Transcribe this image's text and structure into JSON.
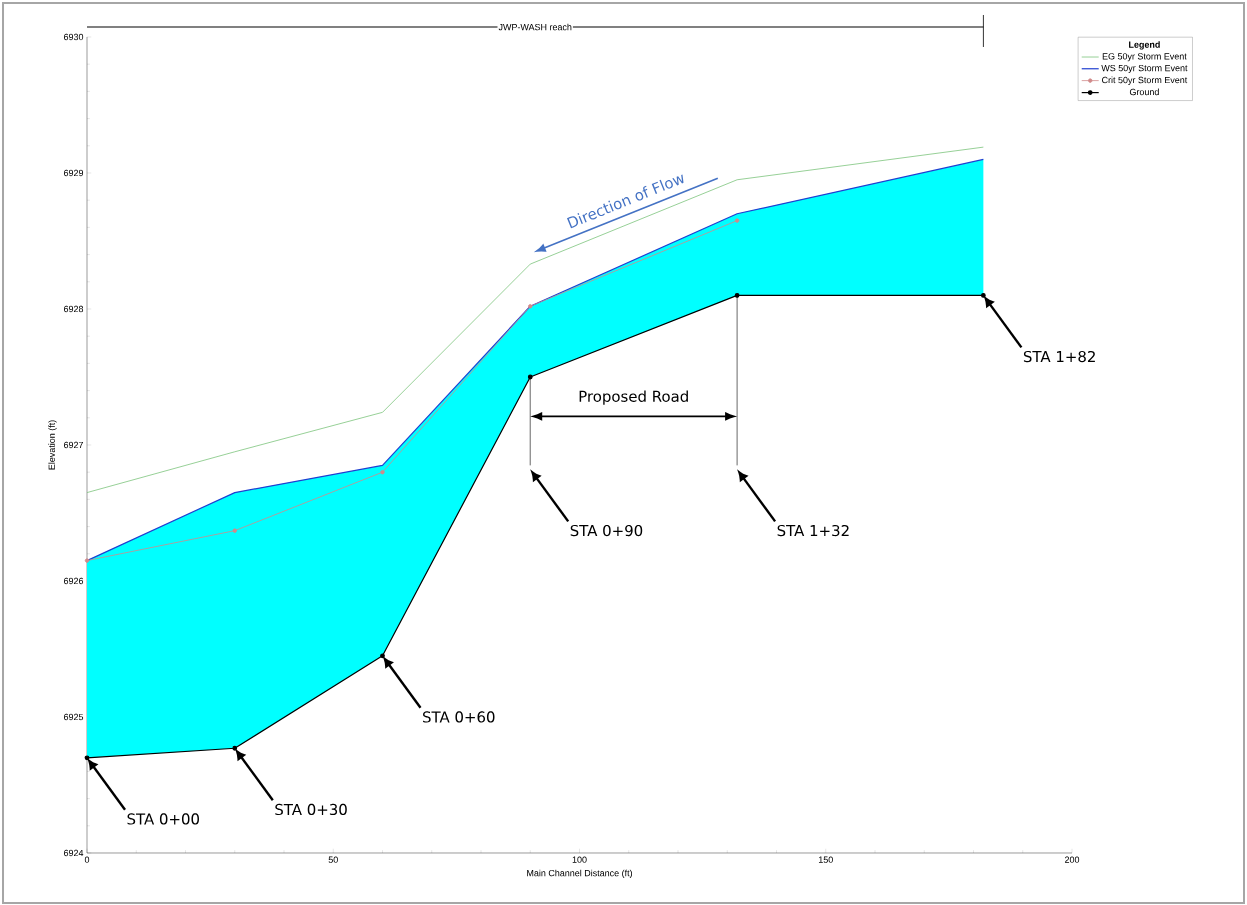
{
  "chart_data": {
    "type": "line",
    "xlabel": "Main Channel Distance (ft)",
    "ylabel": "Elevation (ft)",
    "x": [
      0,
      30,
      60,
      90,
      132,
      182
    ],
    "series": [
      {
        "name": "EG  50yr Storm Event",
        "color": "#7cc47c",
        "values": [
          6926.65,
          6926.95,
          6927.24,
          6928.33,
          6928.95,
          6929.19
        ]
      },
      {
        "name": "WS  50yr Storm Event",
        "color": "#1f3fd0",
        "values": [
          6926.15,
          6926.65,
          6926.85,
          6928.02,
          6928.7,
          6929.1
        ],
        "lower": [
          6924.7,
          6924.77,
          6925.45,
          6927.5,
          6928.1,
          6928.1
        ],
        "upper": [
          6926.15,
          6926.65,
          6926.85,
          6928.02,
          6928.7,
          6929.1
        ]
      },
      {
        "name": "Crit  50yr Storm Event",
        "color": "#d08a8a",
        "values": [
          6926.15,
          6926.37,
          6926.8,
          6928.02,
          6928.65,
          null
        ],
        "marker": "circle"
      },
      {
        "name": "Ground",
        "color": "#000000",
        "values": [
          6924.7,
          6924.77,
          6925.45,
          6927.5,
          6928.1,
          6928.1
        ],
        "marker": "circle"
      }
    ],
    "xlim": [
      0,
      200
    ],
    "xticks": [
      0,
      50,
      100,
      150,
      200
    ],
    "ylim": [
      6924,
      6930
    ],
    "yticks": [
      6924,
      6925,
      6926,
      6927,
      6928,
      6929,
      6930
    ],
    "legend": "top right",
    "legend_title": "Legend",
    "grid": false,
    "annotations": [
      "JWP-WASH reach",
      "Direction of Flow",
      "Proposed Road",
      "STA 0+00",
      "STA 0+30",
      "STA 0+60",
      "STA 0+90",
      "STA 1+32",
      "STA 1+82"
    ]
  }
}
